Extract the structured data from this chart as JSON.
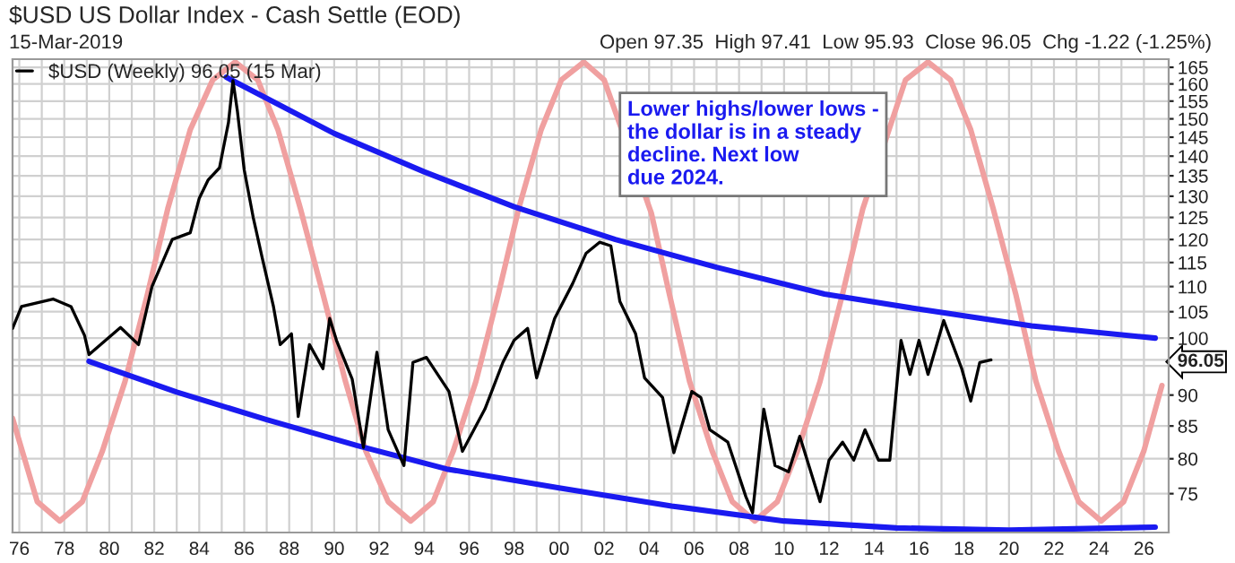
{
  "chart_data": {
    "type": "line",
    "title": "$USD US Dollar Index - Cash Settle (EOD)",
    "annotations": [
      "15-Mar-2019",
      "Open 97.35  High 97.41  Low 95.93  Close 96.05  Chg -1.22 (-1.25%)",
      "Lower highs/lower lows -\nthe dollar is in a steady\ndecline. Next low\ndue 2024."
    ],
    "log": "y",
    "grid": true,
    "legend": "top left",
    "marker": "none",
    "line_style": "solid",
    "xlim": [
      1975.7,
      2027.1
    ],
    "ylim": [
      69.8,
      167.5
    ],
    "xticks": [
      {
        "value": 1976,
        "label": "76"
      },
      {
        "value": 1977,
        "label": null
      },
      {
        "value": 1978,
        "label": "78"
      },
      {
        "value": 1979,
        "label": null
      },
      {
        "value": 1980,
        "label": "80"
      },
      {
        "value": 1981,
        "label": null
      },
      {
        "value": 1982,
        "label": "82"
      },
      {
        "value": 1983,
        "label": null
      },
      {
        "value": 1984,
        "label": "84"
      },
      {
        "value": 1985,
        "label": null
      },
      {
        "value": 1986,
        "label": "86"
      },
      {
        "value": 1987,
        "label": null
      },
      {
        "value": 1988,
        "label": "88"
      },
      {
        "value": 1989,
        "label": null
      },
      {
        "value": 1990,
        "label": "90"
      },
      {
        "value": 1991,
        "label": null
      },
      {
        "value": 1992,
        "label": "92"
      },
      {
        "value": 1993,
        "label": null
      },
      {
        "value": 1994,
        "label": "94"
      },
      {
        "value": 1995,
        "label": null
      },
      {
        "value": 1996,
        "label": "96"
      },
      {
        "value": 1997,
        "label": null
      },
      {
        "value": 1998,
        "label": "98"
      },
      {
        "value": 1999,
        "label": null
      },
      {
        "value": 2000,
        "label": "00"
      },
      {
        "value": 2001,
        "label": null
      },
      {
        "value": 2002,
        "label": "02"
      },
      {
        "value": 2003,
        "label": null
      },
      {
        "value": 2004,
        "label": "04"
      },
      {
        "value": 2005,
        "label": null
      },
      {
        "value": 2006,
        "label": "06"
      },
      {
        "value": 2007,
        "label": null
      },
      {
        "value": 2008,
        "label": "08"
      },
      {
        "value": 2009,
        "label": null
      },
      {
        "value": 2010,
        "label": "10"
      },
      {
        "value": 2011,
        "label": null
      },
      {
        "value": 2012,
        "label": "12"
      },
      {
        "value": 2013,
        "label": null
      },
      {
        "value": 2014,
        "label": "14"
      },
      {
        "value": 2015,
        "label": null
      },
      {
        "value": 2016,
        "label": "16"
      },
      {
        "value": 2017,
        "label": null
      },
      {
        "value": 2018,
        "label": "18"
      },
      {
        "value": 2019,
        "label": null
      },
      {
        "value": 2020,
        "label": "20"
      },
      {
        "value": 2021,
        "label": null
      },
      {
        "value": 2022,
        "label": "22"
      },
      {
        "value": 2023,
        "label": null
      },
      {
        "value": 2024,
        "label": "24"
      },
      {
        "value": 2025,
        "label": null
      },
      {
        "value": 2026,
        "label": "26"
      }
    ],
    "yticks": [
      75,
      80,
      85,
      90,
      {
        "value": 95,
        "label": null
      },
      {
        "value": 96.05,
        "label": "96.05"
      },
      100,
      105,
      110,
      115,
      120,
      125,
      130,
      135,
      140,
      145,
      150,
      155,
      160,
      165
    ],
    "series": [
      {
        "color": "#f0a0a0",
        "x": [
          1975.7,
          1976.8,
          1977.8,
          1978.8,
          1979.7,
          1980.7,
          1981.7,
          1982.6,
          1983.6,
          1984.6,
          1985.6,
          1986.6,
          1987.5,
          1988.5,
          1989.5,
          1990.5,
          1991.4,
          1992.4,
          1993.4,
          1994.4,
          1995.3,
          1996.3,
          1997.3,
          1998.2,
          1999.2,
          2000.1,
          2001.1,
          2002.0,
          2004.1,
          2004.9,
          2005.8,
          2006.8,
          2007.7,
          2008.7,
          2009.7,
          2010.6,
          2011.6,
          2012.6,
          2013.5,
          2015.4,
          2016.4,
          2017.4,
          2018.3,
          2019.3,
          2020.3,
          2021.2,
          2022.2,
          2023.1,
          2024.1,
          2025.1,
          2026.0,
          2026.8
        ],
        "values": [
          86.2,
          73.9,
          71.3,
          73.9,
          81.2,
          92.3,
          108.5,
          127,
          147,
          161.2,
          166.6,
          161.2,
          147,
          127,
          108.5,
          92.3,
          81.2,
          73.9,
          71.3,
          73.9,
          81.2,
          92.3,
          108.5,
          127,
          147,
          161.2,
          166.6,
          161.2,
          126,
          108.5,
          92.3,
          81.2,
          73.9,
          71.3,
          73.9,
          81.2,
          92.3,
          108.5,
          127,
          161.2,
          166.6,
          161.2,
          147,
          127,
          108.5,
          92.3,
          81.2,
          73.9,
          71.3,
          73.9,
          81.2,
          91.6
        ]
      },
      {
        "name": "$USD (Weekly) 96.05 (15 Mar)",
        "color": "#000000",
        "x": [
          1975.7,
          1976.1,
          1977.5,
          1978.3,
          1978.9,
          1979.1,
          1980.5,
          1981.3,
          1981.9,
          1982.8,
          1983.6,
          1984.0,
          1984.4,
          1984.9,
          1985.3,
          1985.5,
          1985.7,
          1986.0,
          1986.4,
          1986.8,
          1987.3,
          1987.6,
          1988.1,
          1988.4,
          1988.9,
          1989.5,
          1989.8,
          1990.1,
          1990.8,
          1991.3,
          1991.9,
          1992.4,
          1993.1,
          1993.5,
          1994.1,
          1995.1,
          1995.7,
          1996.7,
          1997.5,
          1998.0,
          1998.6,
          1999.0,
          1999.8,
          2000.6,
          2001.2,
          2001.8,
          2002.3,
          2002.7,
          2003.4,
          2003.8,
          2004.6,
          2005.1,
          2005.9,
          2006.3,
          2006.7,
          2007.5,
          2008.3,
          2008.6,
          2009.1,
          2009.6,
          2010.2,
          2010.7,
          2011.6,
          2012.0,
          2012.6,
          2013.1,
          2013.6,
          2014.2,
          2014.7,
          2015.2,
          2015.6,
          2016.0,
          2016.4,
          2017.1,
          2017.5,
          2017.9,
          2018.3,
          2018.7,
          2019.2
        ],
        "values": [
          101.8,
          106,
          107.5,
          106,
          100.5,
          97,
          102,
          98.8,
          110,
          120,
          121.5,
          129.5,
          134,
          137,
          149,
          161,
          152,
          136.5,
          125,
          116,
          106,
          98.8,
          100.8,
          86.5,
          98.8,
          94.5,
          103.7,
          99.6,
          92.7,
          81.7,
          97.4,
          84.4,
          79,
          95.6,
          96.5,
          90.6,
          81.1,
          87.7,
          95.6,
          99.6,
          101.8,
          92.9,
          103.7,
          110.6,
          117,
          119.4,
          118.6,
          107,
          100.8,
          92.9,
          89.6,
          80.9,
          90.6,
          89.6,
          84.4,
          82.5,
          74.6,
          72.4,
          87.7,
          79,
          78.1,
          83.4,
          73.9,
          79.8,
          82.5,
          79.8,
          84.4,
          79.8,
          79.8,
          99.6,
          93.5,
          99.6,
          93.5,
          103.3,
          98.8,
          94.5,
          89,
          95.6,
          96.05
        ]
      },
      {
        "color": "#1a1af0",
        "x": [
          1985.2,
          1990,
          1994,
          1998,
          2002.5,
          2007,
          2011.8,
          2016,
          2021,
          2026.5
        ],
        "values": [
          162,
          146,
          136,
          127.5,
          120,
          114,
          108.5,
          105.5,
          102.3,
          100
        ]
      },
      {
        "color": "#1a1af0",
        "x": [
          1979.1,
          1983,
          1987,
          1991,
          1995,
          2000,
          2005,
          2010,
          2015,
          2020,
          2026.5
        ],
        "values": [
          95.8,
          90.5,
          86,
          82,
          78.5,
          75.8,
          73.3,
          71.3,
          70.4,
          70.1,
          70.5
        ]
      }
    ]
  }
}
